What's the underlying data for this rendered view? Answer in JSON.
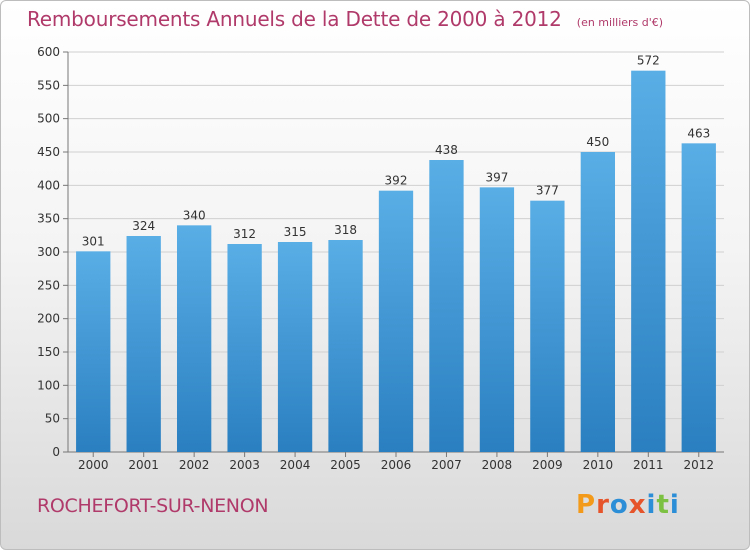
{
  "chart_data": {
    "type": "bar",
    "title": "Remboursements Annuels de la Dette de 2000 à 2012",
    "unit_note": "(en milliers d'€)",
    "categories": [
      "2000",
      "2001",
      "2002",
      "2003",
      "2004",
      "2005",
      "2006",
      "2007",
      "2008",
      "2009",
      "2010",
      "2011",
      "2012"
    ],
    "values": [
      301,
      324,
      340,
      312,
      315,
      318,
      392,
      438,
      397,
      377,
      450,
      572,
      463
    ],
    "ylim": [
      0,
      600
    ],
    "yticks": [
      0,
      50,
      100,
      150,
      200,
      250,
      300,
      350,
      400,
      450,
      500,
      550,
      600
    ],
    "grid": true,
    "bar_color_top": "#5aaee6",
    "bar_color_bottom": "#2a7fc0"
  },
  "footer": {
    "commune": "ROCHEFORT-SUR-NENON",
    "logo": "Proxiti"
  },
  "colors": {
    "title": "#b03a6a",
    "logo_letters": [
      "#f39a1b",
      "#e5542a",
      "#2b8ed6",
      "#e5542a",
      "#2b8ed6",
      "#7cc142",
      "#2b8ed6"
    ]
  }
}
